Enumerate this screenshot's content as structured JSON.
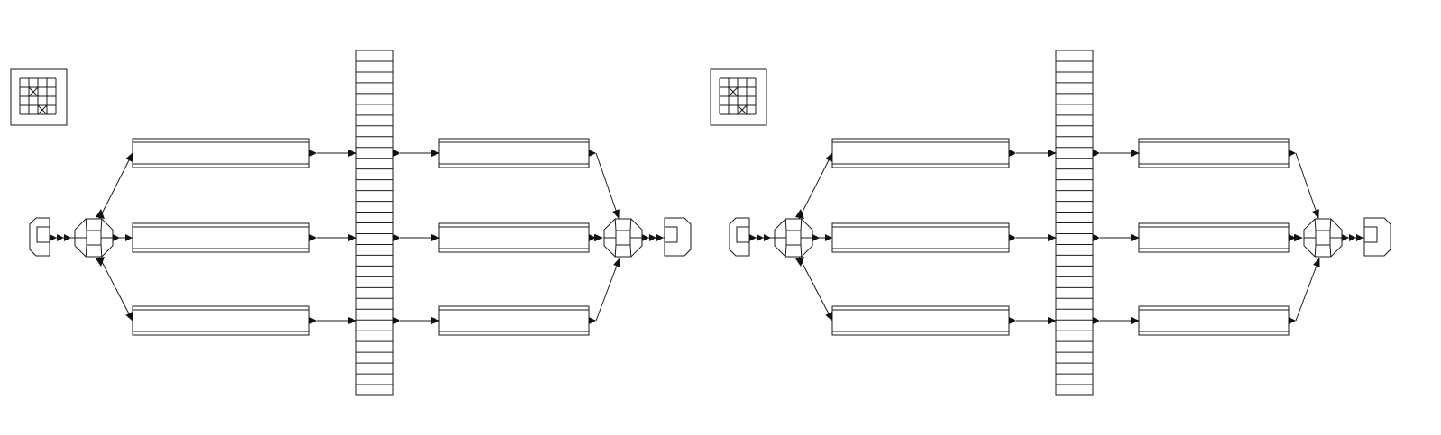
{
  "diagram": {
    "type": "parallel-process-flow",
    "panel_count": 2,
    "stages_per_panel": [
      "source",
      "split",
      "process-a",
      "shared-buffer",
      "process-b",
      "join",
      "sink"
    ],
    "parallel_branches": 3,
    "buffer_cells": 32,
    "grid_legend": {
      "rows": 4,
      "cols": 4,
      "crossed_cells": [
        [
          1,
          1
        ],
        [
          3,
          2
        ]
      ]
    },
    "colors": {
      "stroke": "#1a1a1a",
      "background": "#ffffff",
      "arrowhead": "#111111"
    }
  }
}
